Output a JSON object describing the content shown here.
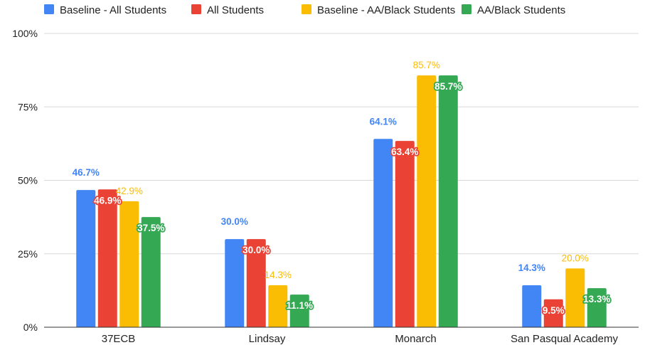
{
  "chart_data": {
    "type": "bar",
    "title": "",
    "xlabel": "",
    "ylabel": "",
    "ylim": [
      0,
      100
    ],
    "y_ticks": [
      "0%",
      "25%",
      "50%",
      "75%",
      "100%"
    ],
    "y_tick_values": [
      0,
      25,
      50,
      75,
      100
    ],
    "grid": true,
    "legend_position": "top",
    "categories": [
      "37ECB",
      "Lindsay",
      "Monarch",
      "San Pasqual Academy"
    ],
    "series": [
      {
        "name": "Baseline - All Students",
        "color": "#4285f4",
        "values": [
          46.7,
          30.0,
          64.1,
          14.3
        ],
        "labels": [
          "46.7%",
          "30.0%",
          "64.1%",
          "14.3%"
        ]
      },
      {
        "name": "All Students",
        "color": "#ea4335",
        "values": [
          46.9,
          30.0,
          63.4,
          9.5
        ],
        "labels": [
          "46.9%",
          "30.0%",
          "63.4%",
          "9.5%"
        ]
      },
      {
        "name": "Baseline - AA/Black Students",
        "color": "#fbbc04",
        "values": [
          42.9,
          14.3,
          85.7,
          20.0
        ],
        "labels": [
          "42.9%",
          "14.3%",
          "85.7%",
          "20.0%"
        ]
      },
      {
        "name": "AA/Black Students",
        "color": "#34a853",
        "values": [
          37.5,
          11.1,
          85.7,
          13.3
        ],
        "labels": [
          "37.5%",
          "11.1%",
          "85.7%",
          "13.3%"
        ]
      }
    ]
  }
}
